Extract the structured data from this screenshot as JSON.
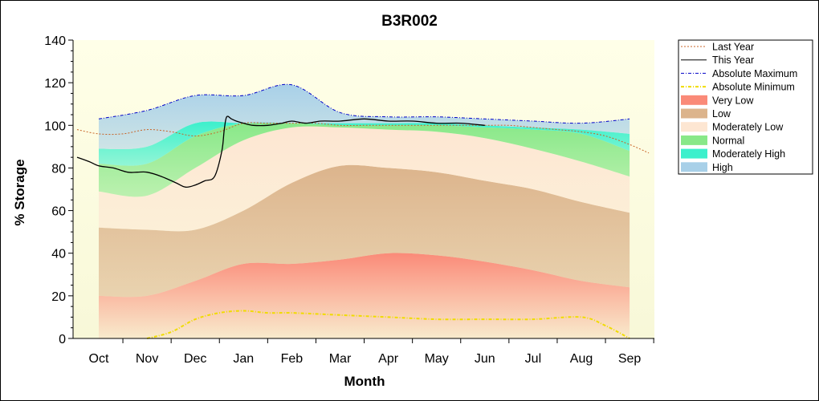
{
  "chart_data": {
    "type": "area",
    "title": "B3R002",
    "xlabel": "Month",
    "ylabel": "% Storage",
    "ylim": [
      0,
      140
    ],
    "yticks": [
      0,
      20,
      40,
      60,
      80,
      100,
      120,
      140
    ],
    "categories": [
      "Oct",
      "Nov",
      "Dec",
      "Jan",
      "Feb",
      "Mar",
      "Apr",
      "May",
      "Jun",
      "Jul",
      "Aug",
      "Sep"
    ],
    "legend_position": "right",
    "band_x": [
      0,
      1,
      2,
      3,
      4,
      5,
      6,
      7,
      8,
      9,
      10,
      11
    ],
    "bands": [
      {
        "name": "Very Low",
        "color": "#fa8a78",
        "lower": [
          0,
          0,
          0,
          0,
          0,
          0,
          0,
          0,
          0,
          0,
          0,
          0
        ],
        "upper": [
          20,
          20,
          27,
          35,
          35,
          37,
          40,
          39,
          36,
          32,
          27,
          24
        ]
      },
      {
        "name": "Low",
        "color": "#dcb48c",
        "lower": [
          20,
          20,
          27,
          35,
          35,
          37,
          40,
          39,
          36,
          32,
          27,
          24
        ],
        "upper": [
          52,
          51,
          51,
          60,
          73,
          81,
          80,
          78,
          74,
          70,
          64,
          59
        ]
      },
      {
        "name": "Moderately Low",
        "color": "#fde6d2",
        "lower": [
          52,
          51,
          51,
          60,
          73,
          81,
          80,
          78,
          74,
          70,
          64,
          59
        ],
        "upper": [
          69,
          67,
          80,
          93,
          99,
          99,
          98,
          97,
          94,
          89,
          83,
          76
        ]
      },
      {
        "name": "Normal",
        "color": "#88e888",
        "lower": [
          69,
          67,
          80,
          93,
          99,
          99,
          98,
          97,
          94,
          89,
          83,
          76
        ],
        "upper": [
          82,
          82,
          95,
          101,
          101,
          100,
          100,
          100,
          99,
          98,
          96,
          88
        ]
      },
      {
        "name": "Moderately High",
        "color": "#3cf0cc",
        "lower": [
          82,
          82,
          95,
          101,
          101,
          100,
          100,
          100,
          99,
          98,
          96,
          88
        ],
        "upper": [
          89,
          90,
          101,
          101,
          101,
          101,
          101,
          101,
          100,
          99,
          98,
          96
        ]
      },
      {
        "name": "High",
        "color": "#a8d0e8",
        "lower": [
          89,
          90,
          101,
          101,
          101,
          101,
          101,
          101,
          100,
          99,
          98,
          96
        ],
        "upper": [
          103,
          107,
          114,
          114,
          119,
          106,
          104,
          104,
          103,
          102,
          101,
          103
        ]
      }
    ],
    "series": [
      {
        "name": "Last Year",
        "color": "#c86428",
        "style": "dotted",
        "x": [
          -0.45,
          0,
          0.5,
          1,
          1.5,
          2,
          2.5,
          3,
          3.5,
          4,
          4.5,
          5,
          5.5,
          6,
          6.5,
          7,
          7.5,
          8,
          8.5,
          9,
          9.5,
          10,
          10.5,
          11,
          11.4
        ],
        "y": [
          98,
          96,
          96,
          98,
          97,
          95,
          97,
          101,
          101,
          101,
          101,
          100,
          100,
          100,
          100,
          100,
          100,
          100,
          100,
          99,
          98,
          97,
          95,
          91,
          87
        ]
      },
      {
        "name": "This Year",
        "color": "#000000",
        "style": "solid",
        "x": [
          -0.45,
          -0.2,
          0,
          0.3,
          0.6,
          0.8,
          1,
          1.3,
          1.6,
          1.8,
          2,
          2.2,
          2.4,
          2.55,
          2.6,
          2.65,
          2.75,
          2.85,
          3,
          3.2,
          3.5,
          3.8,
          4,
          4.3,
          4.6,
          5,
          5.5,
          6,
          6.5,
          7,
          7.5,
          8
        ],
        "y": [
          85,
          83,
          81,
          80,
          78,
          78,
          78,
          76,
          73,
          71,
          72,
          74,
          76,
          88,
          98,
          104,
          103,
          102,
          101,
          100,
          100,
          101,
          102,
          101,
          102,
          102,
          103,
          102,
          102,
          101,
          101,
          100
        ]
      },
      {
        "name": "Absolute Maximum",
        "color": "#0000c8",
        "style": "dashdot",
        "x": [
          0,
          1,
          2,
          3,
          4,
          5,
          6,
          7,
          8,
          9,
          10,
          11
        ],
        "y": [
          103,
          107,
          114,
          114,
          119,
          106,
          104,
          104,
          103,
          102,
          101,
          103
        ]
      },
      {
        "name": "Absolute Minimum",
        "color": "#f0dc00",
        "style": "dashdot",
        "x": [
          1,
          1.5,
          2,
          2.5,
          3,
          3.5,
          4,
          5,
          6,
          7,
          8,
          9,
          10,
          10.5,
          11
        ],
        "y": [
          0,
          3,
          9,
          12,
          13,
          12,
          12,
          11,
          10,
          9,
          9,
          9,
          10,
          6,
          0
        ]
      }
    ],
    "legend": [
      "Last Year",
      "This Year",
      "Absolute Maximum",
      "Absolute Minimum",
      "Very Low",
      "Low",
      "Moderately Low",
      "Normal",
      "Moderately High",
      "High"
    ]
  }
}
